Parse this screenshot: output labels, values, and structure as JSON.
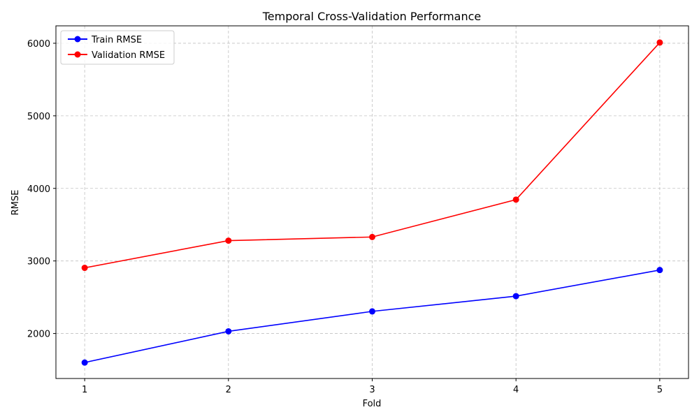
{
  "chart_data": {
    "type": "line",
    "title": "Temporal Cross-Validation Performance",
    "xlabel": "Fold",
    "ylabel": "RMSE",
    "x": [
      1,
      2,
      3,
      4,
      5
    ],
    "x_tick_labels": [
      "1",
      "2",
      "3",
      "4",
      "5"
    ],
    "xlim": [
      0.8,
      5.2
    ],
    "y_ticks": [
      2000,
      3000,
      4000,
      5000,
      6000
    ],
    "y_tick_labels": [
      "2000",
      "3000",
      "4000",
      "5000",
      "6000"
    ],
    "ylim": [
      1380,
      6240
    ],
    "grid": true,
    "legend_position": "top-left",
    "series": [
      {
        "name": "Train RMSE",
        "color": "#0000ff",
        "marker": "circle",
        "values": [
          1600,
          2030,
          2305,
          2515,
          2875
        ]
      },
      {
        "name": "Validation RMSE",
        "color": "#ff0000",
        "marker": "circle",
        "values": [
          2905,
          3280,
          3330,
          3845,
          6010
        ]
      }
    ]
  }
}
